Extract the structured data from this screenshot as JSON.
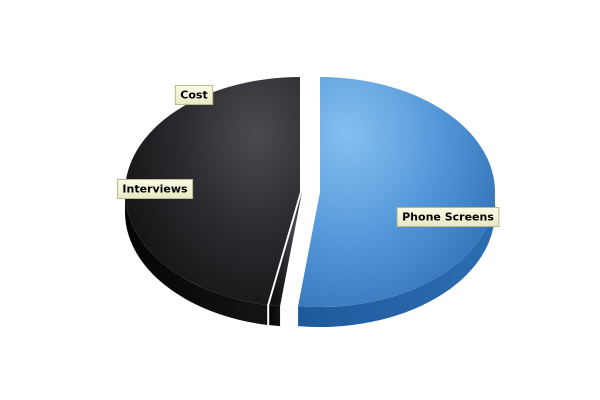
{
  "chart_data": {
    "type": "pie",
    "style": "3d-exploded",
    "legend": "none",
    "labels_shown": [
      "slice-name"
    ],
    "slices": [
      {
        "label": "Phone Screens",
        "value": 52,
        "color": "#4a8fd6"
      },
      {
        "label": "Cost",
        "value": 1,
        "color": "#2a2a2e"
      },
      {
        "label": "Interviews",
        "value": 47,
        "color": "#1a1a1c"
      }
    ]
  }
}
